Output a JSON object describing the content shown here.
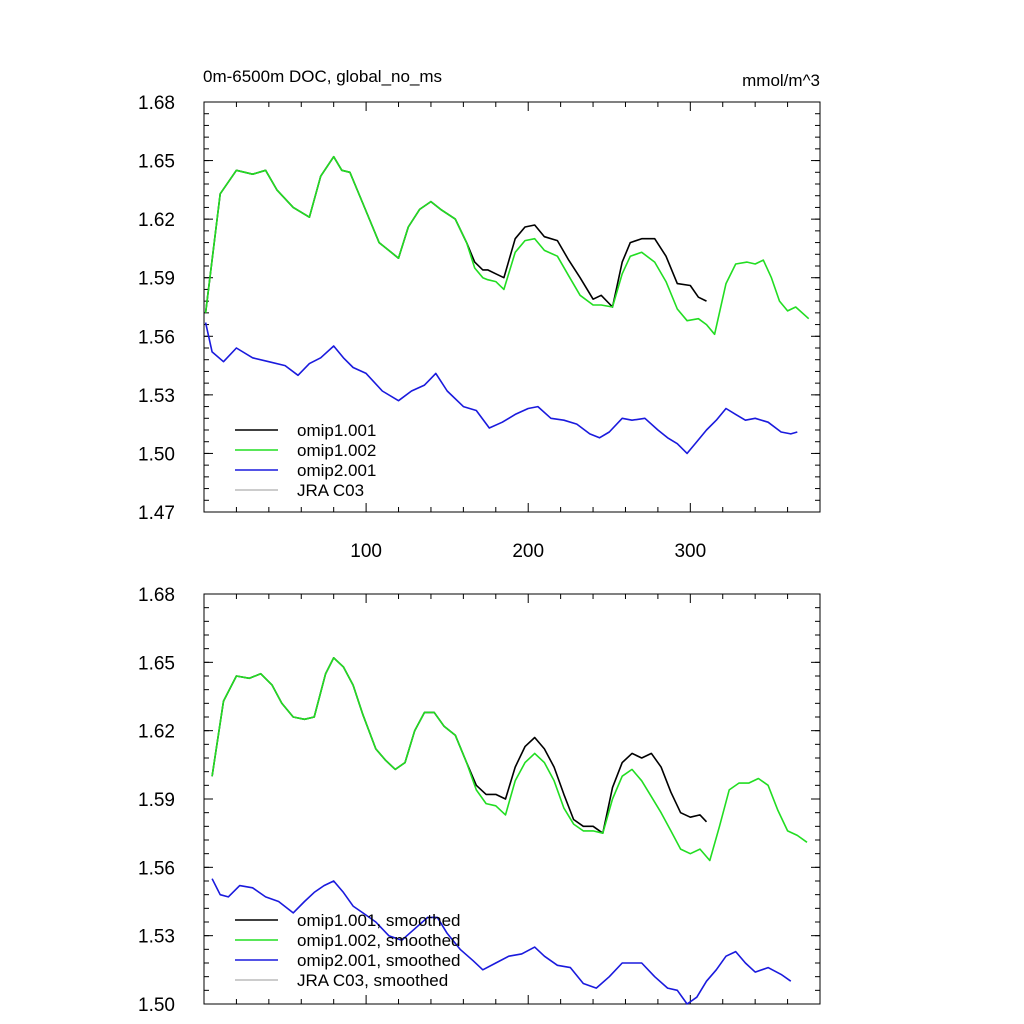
{
  "chart_data": [
    {
      "type": "line",
      "title": "0m-6500m DOC, global_no_ms",
      "units": "mmol/m^3",
      "xlim": [
        0,
        380
      ],
      "ylim": [
        1.47,
        1.68
      ],
      "xticks": [
        100,
        200,
        300
      ],
      "yticks": [
        1.47,
        1.5,
        1.53,
        1.56,
        1.59,
        1.62,
        1.65,
        1.68
      ],
      "ytick_labels": [
        "1.47",
        "1.50",
        "1.53",
        "1.56",
        "1.59",
        "1.62",
        "1.65",
        "1.68"
      ],
      "xtick_labels": [
        "100",
        "200",
        "300"
      ],
      "legend": [
        {
          "label": "omip1.001",
          "color": "#000000"
        },
        {
          "label": "omip1.002",
          "color": "#22dd22"
        },
        {
          "label": "omip2.001",
          "color": "#1a1add"
        },
        {
          "label": "JRA C03",
          "color": "#bbbbbb"
        }
      ],
      "series": [
        {
          "name": "omip1.001",
          "color": "#000000",
          "x": [
            1,
            10,
            20,
            30,
            38,
            45,
            55,
            65,
            72,
            80,
            85,
            90,
            98,
            108,
            114,
            120,
            126,
            133,
            140,
            146,
            155,
            162,
            167,
            172,
            175,
            180,
            185,
            192,
            198,
            204,
            210,
            218,
            225,
            232,
            240,
            245,
            252,
            258,
            263,
            270,
            278,
            285,
            292,
            300,
            305,
            310
          ],
          "y": [
            1.572,
            1.633,
            1.645,
            1.643,
            1.645,
            1.635,
            1.626,
            1.621,
            1.642,
            1.652,
            1.645,
            1.644,
            1.628,
            1.608,
            1.604,
            1.6,
            1.616,
            1.625,
            1.629,
            1.625,
            1.62,
            1.608,
            1.598,
            1.594,
            1.594,
            1.592,
            1.59,
            1.61,
            1.616,
            1.617,
            1.611,
            1.609,
            1.599,
            1.59,
            1.579,
            1.581,
            1.575,
            1.598,
            1.608,
            1.61,
            1.61,
            1.601,
            1.587,
            1.586,
            1.58,
            1.578
          ]
        },
        {
          "name": "omip1.002",
          "color": "#22dd22",
          "x": [
            1,
            10,
            20,
            30,
            38,
            45,
            55,
            65,
            72,
            80,
            85,
            90,
            98,
            108,
            114,
            120,
            126,
            133,
            140,
            146,
            155,
            162,
            167,
            172,
            175,
            180,
            185,
            192,
            198,
            204,
            210,
            218,
            225,
            232,
            240,
            245,
            252,
            258,
            263,
            270,
            278,
            285,
            292,
            298,
            305,
            310,
            315,
            322,
            328,
            335,
            340,
            345,
            350,
            355,
            360,
            365,
            373
          ],
          "y": [
            1.572,
            1.633,
            1.645,
            1.643,
            1.645,
            1.635,
            1.626,
            1.621,
            1.642,
            1.652,
            1.645,
            1.644,
            1.628,
            1.608,
            1.604,
            1.6,
            1.616,
            1.625,
            1.629,
            1.625,
            1.62,
            1.608,
            1.595,
            1.59,
            1.589,
            1.588,
            1.584,
            1.603,
            1.609,
            1.61,
            1.604,
            1.601,
            1.591,
            1.581,
            1.576,
            1.576,
            1.575,
            1.592,
            1.601,
            1.603,
            1.598,
            1.588,
            1.574,
            1.568,
            1.569,
            1.566,
            1.561,
            1.587,
            1.597,
            1.598,
            1.597,
            1.599,
            1.59,
            1.578,
            1.573,
            1.575,
            1.569
          ]
        },
        {
          "name": "omip2.001",
          "color": "#1a1add",
          "x": [
            1,
            5,
            12,
            20,
            30,
            40,
            50,
            58,
            65,
            72,
            80,
            86,
            92,
            100,
            110,
            120,
            128,
            136,
            143,
            150,
            160,
            168,
            176,
            184,
            192,
            200,
            206,
            214,
            222,
            230,
            238,
            244,
            250,
            258,
            264,
            272,
            280,
            286,
            292,
            298,
            304,
            310,
            316,
            322,
            328,
            334,
            340,
            348,
            356,
            362,
            366
          ],
          "y": [
            1.567,
            1.552,
            1.547,
            1.554,
            1.549,
            1.547,
            1.545,
            1.54,
            1.546,
            1.549,
            1.555,
            1.549,
            1.544,
            1.541,
            1.532,
            1.527,
            1.532,
            1.535,
            1.541,
            1.532,
            1.524,
            1.522,
            1.513,
            1.516,
            1.52,
            1.523,
            1.524,
            1.518,
            1.517,
            1.515,
            1.51,
            1.508,
            1.511,
            1.518,
            1.517,
            1.518,
            1.512,
            1.508,
            1.505,
            1.5,
            1.506,
            1.512,
            1.517,
            1.523,
            1.52,
            1.517,
            1.518,
            1.516,
            1.511,
            1.51,
            1.511
          ]
        }
      ]
    },
    {
      "type": "line",
      "xlim": [
        0,
        380
      ],
      "ylim": [
        1.5,
        1.68
      ],
      "yticks": [
        1.5,
        1.53,
        1.56,
        1.59,
        1.62,
        1.65,
        1.68
      ],
      "ytick_labels": [
        "1.50",
        "1.53",
        "1.56",
        "1.59",
        "1.62",
        "1.65",
        "1.68"
      ],
      "legend": [
        {
          "label": "omip1.001, smoothed",
          "color": "#000000"
        },
        {
          "label": "omip1.002, smoothed",
          "color": "#22dd22"
        },
        {
          "label": "omip2.001, smoothed",
          "color": "#1a1add"
        },
        {
          "label": "JRA C03, smoothed",
          "color": "#bbbbbb"
        }
      ],
      "series": [
        {
          "name": "omip1.001, smoothed",
          "color": "#000000",
          "x": [
            5,
            12,
            20,
            28,
            35,
            42,
            48,
            55,
            62,
            68,
            75,
            80,
            86,
            92,
            98,
            106,
            112,
            118,
            124,
            130,
            136,
            142,
            148,
            155,
            162,
            168,
            174,
            180,
            186,
            192,
            198,
            204,
            210,
            216,
            222,
            228,
            234,
            240,
            246,
            252,
            258,
            264,
            270,
            276,
            282,
            288,
            294,
            300,
            306,
            310
          ],
          "y": [
            1.6,
            1.633,
            1.644,
            1.643,
            1.645,
            1.64,
            1.632,
            1.626,
            1.625,
            1.626,
            1.645,
            1.652,
            1.648,
            1.64,
            1.627,
            1.612,
            1.607,
            1.603,
            1.606,
            1.62,
            1.628,
            1.628,
            1.622,
            1.618,
            1.606,
            1.596,
            1.592,
            1.592,
            1.59,
            1.604,
            1.613,
            1.617,
            1.612,
            1.604,
            1.592,
            1.581,
            1.578,
            1.578,
            1.575,
            1.595,
            1.606,
            1.61,
            1.608,
            1.61,
            1.604,
            1.593,
            1.584,
            1.582,
            1.583,
            1.58
          ]
        },
        {
          "name": "omip1.002, smoothed",
          "color": "#22dd22",
          "x": [
            5,
            12,
            20,
            28,
            35,
            42,
            48,
            55,
            62,
            68,
            75,
            80,
            86,
            92,
            98,
            106,
            112,
            118,
            124,
            130,
            136,
            142,
            148,
            155,
            162,
            168,
            174,
            180,
            186,
            192,
            198,
            204,
            210,
            216,
            222,
            228,
            234,
            240,
            246,
            252,
            258,
            264,
            270,
            276,
            282,
            288,
            294,
            300,
            306,
            312,
            318,
            324,
            330,
            336,
            342,
            348,
            354,
            360,
            366,
            372
          ],
          "y": [
            1.6,
            1.633,
            1.644,
            1.643,
            1.645,
            1.64,
            1.632,
            1.626,
            1.625,
            1.626,
            1.645,
            1.652,
            1.648,
            1.64,
            1.627,
            1.612,
            1.607,
            1.603,
            1.606,
            1.62,
            1.628,
            1.628,
            1.622,
            1.618,
            1.606,
            1.594,
            1.588,
            1.587,
            1.583,
            1.598,
            1.606,
            1.61,
            1.606,
            1.598,
            1.586,
            1.579,
            1.576,
            1.576,
            1.575,
            1.59,
            1.6,
            1.603,
            1.598,
            1.591,
            1.584,
            1.576,
            1.568,
            1.566,
            1.568,
            1.563,
            1.578,
            1.594,
            1.597,
            1.597,
            1.599,
            1.596,
            1.585,
            1.576,
            1.574,
            1.571
          ]
        },
        {
          "name": "omip2.001, smoothed",
          "color": "#1a1add",
          "x": [
            5,
            10,
            15,
            22,
            30,
            38,
            46,
            55,
            62,
            68,
            74,
            80,
            86,
            92,
            98,
            106,
            114,
            122,
            130,
            138,
            144,
            150,
            158,
            166,
            172,
            180,
            188,
            196,
            204,
            210,
            218,
            226,
            234,
            242,
            250,
            258,
            264,
            270,
            278,
            286,
            292,
            298,
            304,
            310,
            316,
            322,
            328,
            334,
            340,
            348,
            356,
            362
          ],
          "y": [
            1.555,
            1.548,
            1.547,
            1.552,
            1.551,
            1.547,
            1.545,
            1.54,
            1.545,
            1.549,
            1.552,
            1.554,
            1.549,
            1.543,
            1.54,
            1.536,
            1.53,
            1.528,
            1.533,
            1.538,
            1.538,
            1.531,
            1.524,
            1.519,
            1.515,
            1.518,
            1.521,
            1.522,
            1.525,
            1.521,
            1.517,
            1.516,
            1.509,
            1.507,
            1.512,
            1.518,
            1.518,
            1.518,
            1.512,
            1.507,
            1.506,
            1.5,
            1.503,
            1.51,
            1.515,
            1.521,
            1.523,
            1.518,
            1.514,
            1.516,
            1.513,
            1.51
          ]
        }
      ]
    }
  ]
}
